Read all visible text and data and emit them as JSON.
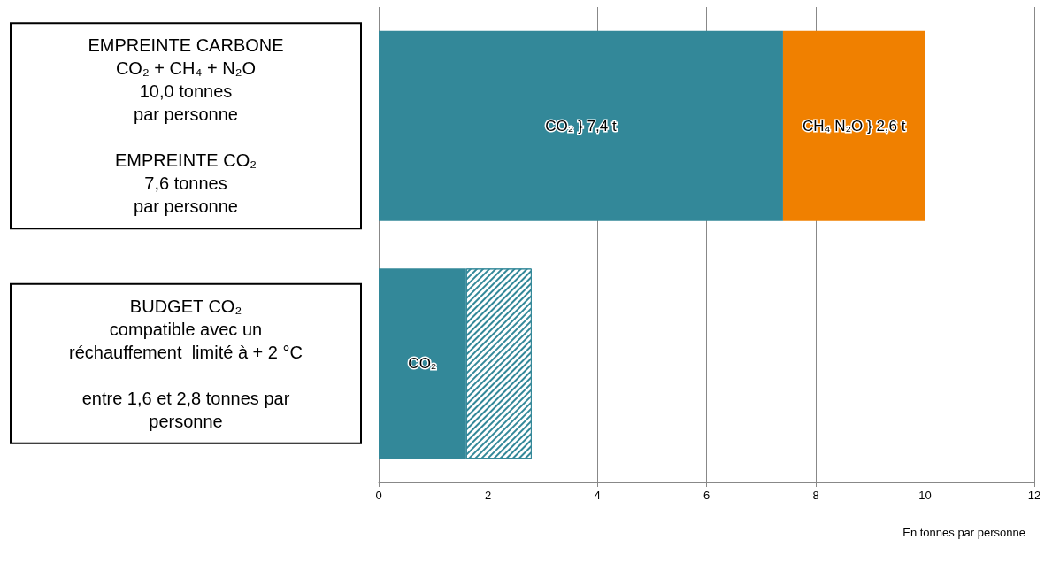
{
  "chart_data": {
    "type": "bar",
    "orientation": "horizontal",
    "stacked": true,
    "categories": [
      "EMPREINTE CARBONE\nCO₂ + CH₄ + N₂O\n10,0 tonnes\npar personne\n\nEMPREINTE CO₂\n7,6 tonnes\npar personne",
      "BUDGET CO₂\ncompatible avec un\nréchauffement  limité à + 2 °C\n\nentre 1,6 et 2,8 tonnes par\npersonne"
    ],
    "series": [
      {
        "color": "#338899",
        "values": [
          7.4,
          1.6
        ],
        "value_labels": [
          "CO₂ } 7,4 t",
          "CO₂"
        ]
      },
      {
        "color": "#f08000",
        "values": [
          2.6,
          null
        ],
        "value_labels": [
          "CH₄ N₂O } 2,6 t",
          null
        ]
      },
      {
        "color": "#338899",
        "values": [
          null,
          1.2
        ]
      }
    ],
    "xlim": [
      0,
      12
    ],
    "xticks": [
      0,
      2,
      4,
      6,
      8,
      10,
      12
    ],
    "grid": "x",
    "xlabel": "En tonnes par personne"
  }
}
